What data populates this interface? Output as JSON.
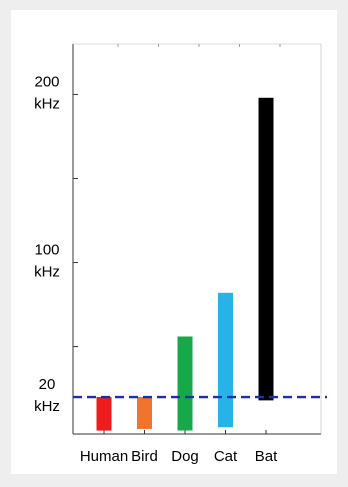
{
  "chart_data": {
    "type": "range-bar",
    "unit": "kHz",
    "categories": [
      "Human",
      "Bird",
      "Dog",
      "Cat",
      "Bat"
    ],
    "ranges": [
      {
        "category": "Human",
        "low": 0.02,
        "high": 20,
        "color": "#ee1c1c"
      },
      {
        "category": "Bird",
        "low": 1,
        "high": 20,
        "color": "#f0742c"
      },
      {
        "category": "Dog",
        "low": 0.07,
        "high": 56,
        "color": "#17a84a"
      },
      {
        "category": "Cat",
        "low": 2,
        "high": 82,
        "color": "#27b3e8"
      },
      {
        "category": "Bat",
        "low": 18,
        "high": 198,
        "color": "#000000"
      }
    ],
    "y_tick_labels": [
      {
        "value": 20,
        "line1": "20",
        "line2": "kHz"
      },
      {
        "value": 100,
        "line1": "100",
        "line2": "kHz"
      },
      {
        "value": 200,
        "line1": "200",
        "line2": "kHz"
      }
    ],
    "y_minor_ticks": [
      50,
      150
    ],
    "ylim": [
      -2,
      230
    ],
    "reference_line": {
      "value": 20,
      "style": "dashed",
      "color": "#1a2eb0"
    },
    "grid": false
  }
}
